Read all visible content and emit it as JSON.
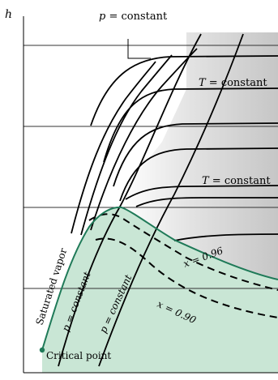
{
  "axis": {
    "y_label": "h"
  },
  "labels": {
    "p_constant_top": {
      "var": "p",
      "rest": " = constant"
    },
    "t_constant_upper": {
      "var": "T",
      "rest": " = constant"
    },
    "t_constant_lower": {
      "var": "T",
      "rest": " = constant"
    },
    "saturated_vapor": "Saturated vapor",
    "p_constant_left": "p = constant",
    "p_constant_right": "p = constant",
    "x_096": "x = 0.96",
    "x_090": "x = 0.90",
    "critical_point": "Critical point"
  },
  "colors": {
    "two_phase_region": "#c9e6d5",
    "saturation_curve": "#1f7a58",
    "superheat_gradient_dark": "#c6c6c6",
    "grid": "#333333"
  }
}
